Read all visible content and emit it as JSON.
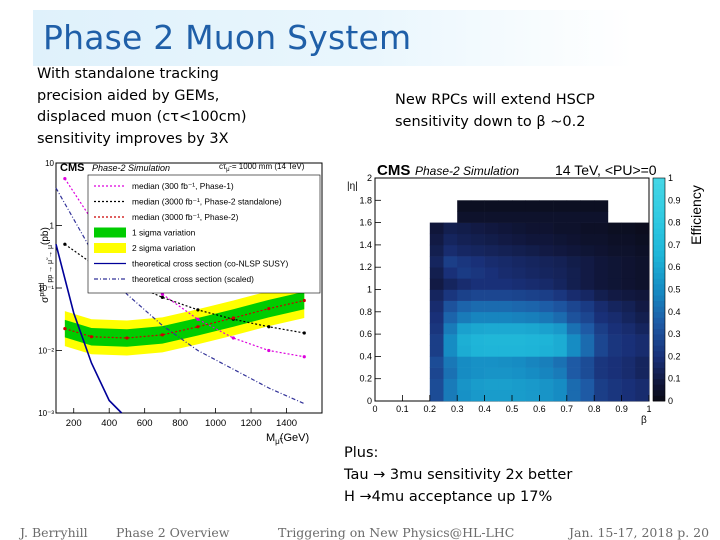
{
  "slide": {
    "title": "Phase 2 Muon System",
    "left_text": [
      "With standalone tracking",
      "precision aided by GEMs,",
      "displaced muon (cτ<100cm)",
      "sensitivity improves by 3X"
    ],
    "right_text": [
      "New RPCs will extend HSCP",
      "sensitivity down to β ~0.2"
    ],
    "plus_header": "Plus:",
    "plus_lines": [
      {
        "prefix": "Tau ",
        "arrow": "→",
        "text": " 3mu sensitivity 2x better"
      },
      {
        "prefix": "H ",
        "arrow": "→",
        "text": "4mu acceptance up 17%"
      }
    ],
    "footer": {
      "author": "J. Berryhill",
      "section": "Phase 2 Overview",
      "event": "Triggering on New Physics@HL-LHC",
      "date_page": "Jan. 15-17, 2018  p. 20"
    },
    "colors": {
      "title": "#1f5fa8",
      "footer": "#6b6b6b",
      "band_1sigma": "#00cc00",
      "band_2sigma": "#ffff00"
    }
  },
  "chart_data": [
    {
      "type": "line",
      "cms_label": "CMS",
      "sim_label": "Phase-2 Simulation",
      "header": "cτ",
      "header_sub": "μ̃",
      "header_rest": " = 1000 mm (14 TeV)",
      "ylabel": "σ",
      "ylabel_sup": "prod",
      "ylabel_sub": "pp → μ̃ → μ",
      "ylabel_unit": "(pb)",
      "xlabel": "M",
      "xlabel_sub": "μ̃",
      "xlabel_unit": "(GeV)",
      "xlim": [
        100,
        1600
      ],
      "ylim_log10": [
        -3,
        1
      ],
      "xticks": [
        "200",
        "400",
        "600",
        "800",
        "1000",
        "1200",
        "1400"
      ],
      "xtick_values": [
        200,
        400,
        600,
        800,
        1000,
        1200,
        1400
      ],
      "yticks": [
        "10",
        "1",
        "10⁻¹",
        "10⁻²",
        "10⁻³"
      ],
      "ytick_values": [
        1,
        0,
        -1,
        -2,
        -3
      ],
      "legend": [
        {
          "text": "median (300 fb⁻¹, Phase-1)",
          "style": "dotted",
          "color": "#dd00dd"
        },
        {
          "text": "median (3000 fb⁻¹, Phase-2 standalone)",
          "style": "dotted",
          "color": "#000000"
        },
        {
          "text": "median (3000 fb⁻¹, Phase-2)",
          "style": "dotted",
          "color": "#cc0000"
        },
        {
          "text": "1 sigma variation",
          "style": "band",
          "color": "#00cc00"
        },
        {
          "text": "2 sigma variation",
          "style": "band",
          "color": "#ffff00"
        },
        {
          "text": "theoretical cross section (co-NLSP SUSY)",
          "style": "solid",
          "color": "#000099"
        },
        {
          "text": "theoretical cross section (scaled)",
          "style": "dashdot",
          "color": "#333399"
        }
      ],
      "series": [
        {
          "name": "median (300 fb⁻¹, Phase-1)",
          "x": [
            150,
            300,
            500,
            700,
            900,
            1100,
            1300,
            1500
          ],
          "log10y": [
            0.75,
            0.1,
            -0.55,
            -1.1,
            -1.5,
            -1.8,
            -2.0,
            -2.1
          ]
        },
        {
          "name": "median (3000 fb⁻¹, Phase-2 standalone)",
          "x": [
            150,
            300,
            500,
            700,
            900,
            1100,
            1300,
            1500
          ],
          "log10y": [
            -0.3,
            -0.6,
            -0.9,
            -1.15,
            -1.35,
            -1.5,
            -1.62,
            -1.72
          ]
        },
        {
          "name": "median (3000 fb⁻¹, Phase-2)",
          "x": [
            150,
            300,
            500,
            700,
            900,
            1100,
            1300,
            1500
          ],
          "log10y": [
            -1.65,
            -1.78,
            -1.8,
            -1.75,
            -1.62,
            -1.48,
            -1.33,
            -1.2
          ]
        },
        {
          "name": "theoretical cross section (co-NLSP SUSY)",
          "x": [
            100,
            200,
            300,
            400,
            470
          ],
          "log10y": [
            -0.3,
            -1.4,
            -2.2,
            -2.8,
            -3.0
          ]
        },
        {
          "name": "theoretical cross section (scaled)",
          "x": [
            100,
            300,
            500,
            700,
            900,
            1100,
            1300,
            1500
          ],
          "log10y": [
            0.6,
            -0.4,
            -1.1,
            -1.6,
            -2.0,
            -2.3,
            -2.6,
            -2.85
          ]
        }
      ]
    },
    {
      "type": "heatmap",
      "cms_label": "CMS",
      "sim_label": "Phase-2 Simulation",
      "header_right": "14 TeV, <PU>=0",
      "xlabel": "β",
      "ylabel": "|η|",
      "zlabel": "Efficiency",
      "xlim": [
        0,
        1
      ],
      "ylim": [
        0,
        2
      ],
      "xticks": [
        "0",
        "0.1",
        "0.2",
        "0.3",
        "0.4",
        "0.5",
        "0.6",
        "0.7",
        "0.8",
        "0.9",
        "1"
      ],
      "xtick_values": [
        0,
        0.1,
        0.2,
        0.3,
        0.4,
        0.5,
        0.6,
        0.7,
        0.8,
        0.9,
        1
      ],
      "yticks": [
        "0",
        "0.2",
        "0.4",
        "0.6",
        "0.8",
        "1",
        "1.2",
        "1.4",
        "1.6",
        "1.8",
        "2"
      ],
      "ytick_values": [
        0,
        0.2,
        0.4,
        0.6,
        0.8,
        1,
        1.2,
        1.4,
        1.6,
        1.8,
        2
      ],
      "zticks": [
        "0",
        "0.1",
        "0.2",
        "0.3",
        "0.4",
        "0.5",
        "0.6",
        "0.7",
        "0.8",
        "0.9",
        "1"
      ],
      "ztick_values": [
        0,
        0.1,
        0.2,
        0.3,
        0.4,
        0.5,
        0.6,
        0.7,
        0.8,
        0.9,
        1
      ],
      "xbins": 20,
      "ybins": 20,
      "xbin_start": 0.2,
      "ybin_start": 0.0,
      "efficiency_rows_from_eta0": [
        [
          0.3,
          0.45,
          0.52,
          0.55,
          0.56,
          0.56,
          0.56,
          0.55,
          0.53,
          0.5,
          0.4,
          0.35,
          0.25,
          0.22,
          0.2,
          0.18
        ],
        [
          0.3,
          0.45,
          0.53,
          0.56,
          0.57,
          0.57,
          0.56,
          0.55,
          0.53,
          0.5,
          0.4,
          0.35,
          0.25,
          0.22,
          0.2,
          0.18
        ],
        [
          0.28,
          0.42,
          0.5,
          0.52,
          0.53,
          0.53,
          0.52,
          0.5,
          0.48,
          0.45,
          0.35,
          0.3,
          0.22,
          0.2,
          0.18,
          0.15
        ],
        [
          0.3,
          0.44,
          0.5,
          0.52,
          0.52,
          0.51,
          0.5,
          0.48,
          0.46,
          0.42,
          0.35,
          0.3,
          0.22,
          0.2,
          0.18,
          0.15
        ],
        [
          0.25,
          0.5,
          0.62,
          0.65,
          0.66,
          0.66,
          0.66,
          0.65,
          0.64,
          0.62,
          0.5,
          0.4,
          0.28,
          0.22,
          0.2,
          0.18
        ],
        [
          0.25,
          0.5,
          0.63,
          0.66,
          0.67,
          0.67,
          0.67,
          0.66,
          0.65,
          0.62,
          0.5,
          0.4,
          0.28,
          0.22,
          0.2,
          0.18
        ],
        [
          0.22,
          0.45,
          0.58,
          0.6,
          0.61,
          0.61,
          0.61,
          0.6,
          0.58,
          0.55,
          0.42,
          0.35,
          0.25,
          0.2,
          0.18,
          0.15
        ],
        [
          0.2,
          0.38,
          0.45,
          0.48,
          0.48,
          0.48,
          0.47,
          0.46,
          0.44,
          0.4,
          0.32,
          0.28,
          0.2,
          0.18,
          0.15,
          0.12
        ],
        [
          0.18,
          0.32,
          0.38,
          0.4,
          0.4,
          0.4,
          0.39,
          0.38,
          0.36,
          0.33,
          0.28,
          0.24,
          0.18,
          0.15,
          0.13,
          0.1
        ],
        [
          0.15,
          0.22,
          0.26,
          0.28,
          0.28,
          0.28,
          0.27,
          0.26,
          0.25,
          0.22,
          0.18,
          0.16,
          0.12,
          0.1,
          0.09,
          0.08
        ],
        [
          0.1,
          0.15,
          0.18,
          0.2,
          0.2,
          0.2,
          0.19,
          0.18,
          0.17,
          0.15,
          0.12,
          0.1,
          0.08,
          0.07,
          0.06,
          0.05
        ],
        [
          0.12,
          0.2,
          0.24,
          0.22,
          0.2,
          0.18,
          0.17,
          0.16,
          0.15,
          0.14,
          0.12,
          0.1,
          0.08,
          0.07,
          0.06,
          0.05
        ],
        [
          0.15,
          0.25,
          0.22,
          0.2,
          0.18,
          0.17,
          0.16,
          0.15,
          0.14,
          0.13,
          0.11,
          0.1,
          0.08,
          0.07,
          0.06,
          0.05
        ],
        [
          0.12,
          0.18,
          0.16,
          0.15,
          0.14,
          0.13,
          0.12,
          0.11,
          0.1,
          0.09,
          0.08,
          0.07,
          0.06,
          0.05,
          0.05,
          0.04
        ],
        [
          0.1,
          0.15,
          0.13,
          0.12,
          0.11,
          0.1,
          0.09,
          0.08,
          0.08,
          0.07,
          0.06,
          0.05,
          0.05,
          0.04,
          0.04,
          0.03
        ],
        [
          0.08,
          0.12,
          0.11,
          0.1,
          0.09,
          0.08,
          0.07,
          0.06,
          0.06,
          0.05,
          0.05,
          0.04,
          0.04,
          0.03,
          0.03,
          0.02
        ],
        [
          null,
          null,
          0.05,
          0.05,
          0.05,
          0.05,
          0.05,
          0.05,
          0.05,
          0.05,
          0.05,
          0.05,
          0.05,
          null,
          null,
          null
        ],
        [
          null,
          null,
          0.03,
          0.03,
          0.03,
          0.03,
          0.03,
          0.03,
          0.03,
          0.03,
          0.03,
          0.03,
          0.03,
          null,
          null,
          null
        ],
        [
          null,
          null,
          null,
          null,
          null,
          null,
          null,
          null,
          null,
          null,
          null,
          null,
          null,
          null,
          null,
          null
        ],
        [
          null,
          null,
          null,
          null,
          null,
          null,
          null,
          null,
          null,
          null,
          null,
          null,
          null,
          null,
          null,
          null
        ]
      ]
    }
  ]
}
